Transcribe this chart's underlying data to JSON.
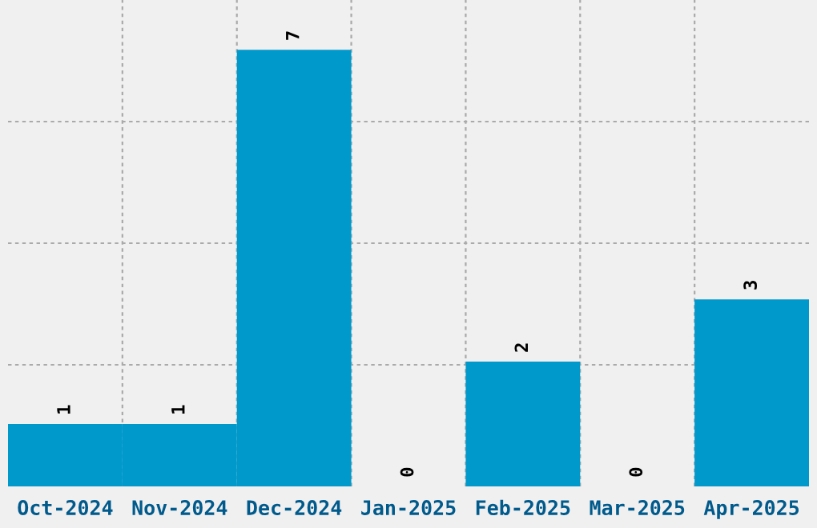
{
  "chart_data": {
    "type": "bar",
    "categories": [
      "Oct-2024",
      "Nov-2024",
      "Dec-2024",
      "Jan-2025",
      "Feb-2025",
      "Mar-2025",
      "Apr-2025"
    ],
    "values": [
      1,
      1,
      7,
      0,
      2,
      0,
      3
    ],
    "color": "#0099cc",
    "ylim": [
      0,
      7.8
    ],
    "yticks": [
      {
        "value": 1.95,
        "label": null
      },
      {
        "value": 3.9,
        "label": null
      },
      {
        "value": 5.85,
        "label": null
      }
    ],
    "tick_labels": "x",
    "grid": true,
    "data_labels": true
  }
}
